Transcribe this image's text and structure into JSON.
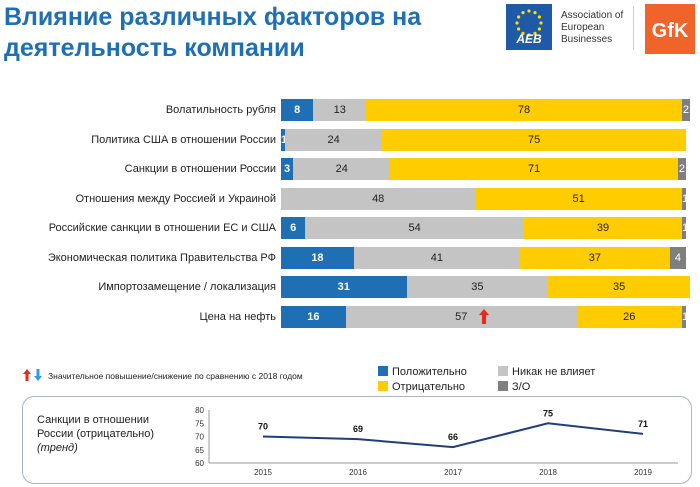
{
  "header": {
    "title": "Влияние различных факторов на деятельность компании",
    "aeb_abbr": "AEB",
    "aeb_name": "Association of European Businesses",
    "gfk_logo": "GfK"
  },
  "colors": {
    "positive": "#1e6fb3",
    "neutral": "#c4c4c4",
    "negative": "#ffcc00",
    "no_answer": "#7f7f7f",
    "accent": "#1e6fb3",
    "gfk_orange": "#f0632a",
    "arrow_up": "#e8291c",
    "arrow_down": "#2f9fd8"
  },
  "chart_data": [
    {
      "type": "bar",
      "orientation": "horizontal",
      "stacked": true,
      "categories": [
        "Волатильность рубля",
        "Политика США в отношении России",
        "Санкции в отношении России",
        "Отношения между Россией и Украиной",
        "Российские санкции в отношении ЕС и США",
        "Экономическая политика Правительства РФ",
        "Импортозамещение / локализация",
        "Цена на нефть"
      ],
      "series": [
        {
          "name": "Положительно",
          "values": [
            8,
            1,
            3,
            0,
            6,
            18,
            31,
            16
          ],
          "labels": [
            "8",
            "1",
            "3",
            "",
            "6",
            "18",
            "31",
            "16"
          ]
        },
        {
          "name": "Никак не влияет",
          "values": [
            13,
            24,
            24,
            48,
            54,
            41,
            35,
            57
          ],
          "labels": [
            "13",
            "24",
            "24",
            "48",
            "54",
            "41",
            "35",
            "57"
          ]
        },
        {
          "name": "Отрицательно",
          "values": [
            78,
            75,
            71,
            51,
            39,
            37,
            35,
            26
          ],
          "labels": [
            "78",
            "75",
            "71",
            "51",
            "39",
            "37",
            "35",
            "26"
          ]
        },
        {
          "name": "З/О",
          "values": [
            2,
            0,
            2,
            1,
            1,
            4,
            0,
            1
          ],
          "labels": [
            "2",
            "",
            "2",
            "1",
            "1",
            "4",
            "",
            "1"
          ]
        }
      ],
      "significance_up": [
        {
          "category": "Цена на нефть",
          "series": "Никак не влияет"
        }
      ],
      "xlim": [
        0,
        100
      ],
      "legend": [
        "Положительно",
        "Никак не влияет",
        "Отрицательно",
        "З/О"
      ],
      "legend_position": "bottom-right",
      "significance_note": "Значительное повышение/снижение по сравнению с 2018 годом"
    },
    {
      "type": "line",
      "title": "Санкции в отношении России (отрицательно)",
      "subtitle": "(тренд)",
      "x": [
        "2015",
        "2016",
        "2017",
        "2018",
        "2019"
      ],
      "values": [
        70,
        69,
        66,
        75,
        71
      ],
      "ylim": [
        60,
        80
      ],
      "yticks": [
        "80",
        "75",
        "70",
        "65",
        "60"
      ]
    }
  ]
}
